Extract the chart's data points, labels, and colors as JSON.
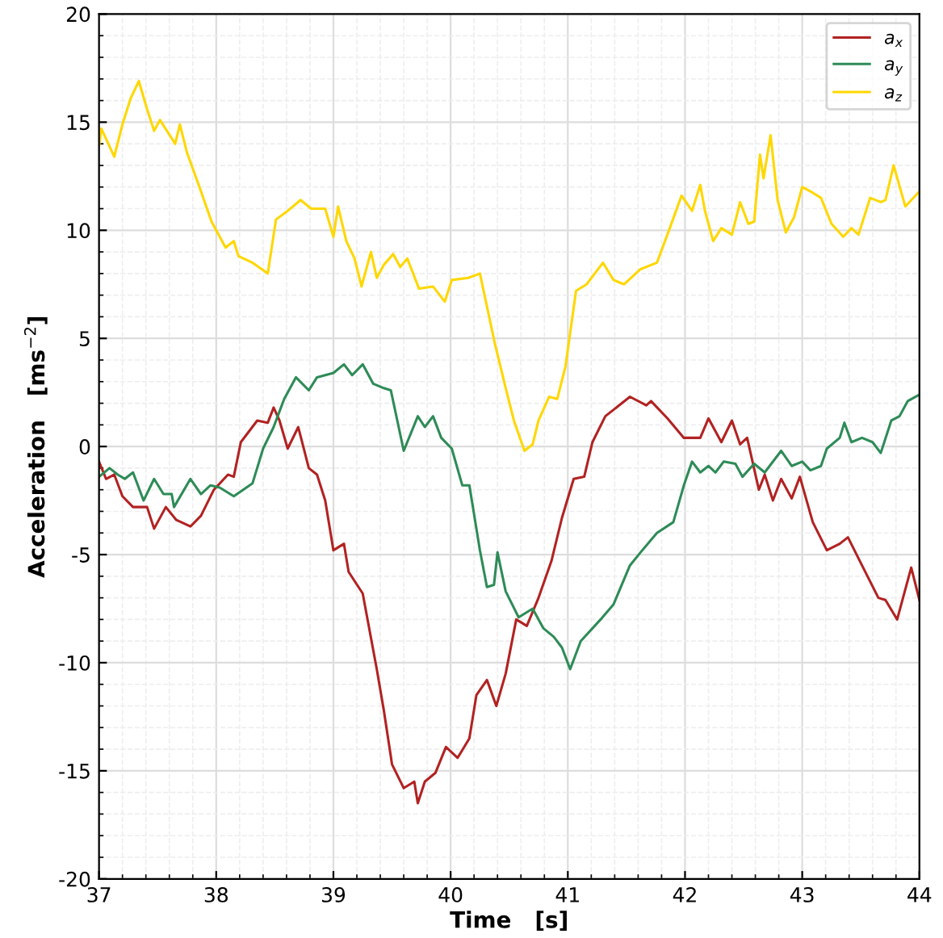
{
  "chart_data": {
    "type": "line",
    "xlabel": "Time   [s]",
    "ylabel": "Acceleration   [ms$^{−2}$]",
    "xlim": [
      37,
      44
    ],
    "ylim": [
      -20,
      20
    ],
    "xticks": [
      37,
      38,
      39,
      40,
      41,
      42,
      43,
      44
    ],
    "yticks": [
      -20,
      -15,
      -10,
      -5,
      0,
      5,
      10,
      15,
      20
    ],
    "grid": true,
    "legend": "top right",
    "line_style": "solid",
    "marker": "none",
    "series": [
      {
        "name": "a$_{x}$",
        "color": "#b22222",
        "x": [
          37.0,
          37.06,
          37.13,
          37.2,
          37.29,
          37.41,
          37.47,
          37.57,
          37.66,
          37.78,
          37.87,
          37.98,
          38.1,
          38.15,
          38.21,
          38.35,
          38.44,
          38.49,
          38.54,
          38.61,
          38.7,
          38.79,
          38.86,
          38.93,
          39.0,
          39.09,
          39.13,
          39.25,
          39.37,
          39.43,
          39.5,
          39.6,
          39.69,
          39.72,
          39.78,
          39.87,
          39.96,
          40.06,
          40.16,
          40.22,
          40.31,
          40.39,
          40.47,
          40.56,
          40.65,
          40.75,
          40.86,
          40.95,
          41.05,
          41.14,
          41.21,
          41.32,
          41.39,
          41.53,
          41.67,
          41.71,
          41.85,
          41.99,
          42.13,
          42.2,
          42.31,
          42.4,
          42.47,
          42.53,
          42.63,
          42.68,
          42.75,
          42.82,
          42.91,
          42.98,
          43.09,
          43.21,
          43.32,
          43.39,
          43.51,
          43.65,
          43.71,
          43.81,
          43.93,
          44.0
        ],
        "values": [
          -0.7,
          -1.5,
          -1.3,
          -2.3,
          -2.8,
          -2.8,
          -3.8,
          -2.8,
          -3.4,
          -3.7,
          -3.2,
          -2.0,
          -1.3,
          -1.4,
          0.2,
          1.2,
          1.1,
          1.8,
          1.2,
          -0.1,
          0.9,
          -1.0,
          -1.3,
          -2.5,
          -4.8,
          -4.5,
          -5.8,
          -6.8,
          -10.3,
          -12.2,
          -14.7,
          -15.8,
          -15.5,
          -16.5,
          -15.5,
          -15.1,
          -13.9,
          -14.4,
          -13.5,
          -11.5,
          -10.8,
          -12.0,
          -10.5,
          -8.0,
          -8.3,
          -7.0,
          -5.3,
          -3.3,
          -1.5,
          -1.4,
          0.2,
          1.4,
          1.7,
          2.3,
          1.9,
          2.1,
          1.3,
          0.4,
          0.4,
          1.3,
          0.2,
          1.2,
          0.1,
          0.4,
          -2.0,
          -1.3,
          -2.5,
          -1.5,
          -2.4,
          -1.4,
          -3.5,
          -4.8,
          -4.5,
          -4.2,
          -5.5,
          -7.0,
          -7.1,
          -8.0,
          -5.6,
          -7.1
        ]
      },
      {
        "name": "a$_{y}$",
        "color": "#2e8b57",
        "x": [
          37.0,
          37.09,
          37.16,
          37.22,
          37.29,
          37.38,
          37.47,
          37.55,
          37.62,
          37.64,
          37.78,
          37.87,
          37.95,
          38.03,
          38.15,
          38.31,
          38.4,
          38.49,
          38.58,
          38.68,
          38.79,
          38.86,
          39.0,
          39.09,
          39.16,
          39.25,
          39.34,
          39.43,
          39.49,
          39.6,
          39.72,
          39.78,
          39.85,
          39.92,
          40.01,
          40.1,
          40.16,
          40.25,
          40.31,
          40.37,
          40.4,
          40.47,
          40.58,
          40.7,
          40.79,
          40.88,
          40.95,
          41.02,
          41.11,
          41.28,
          41.39,
          41.53,
          41.62,
          41.76,
          41.9,
          41.99,
          42.06,
          42.13,
          42.2,
          42.26,
          42.33,
          42.43,
          42.49,
          42.59,
          42.68,
          42.82,
          42.91,
          43.0,
          43.07,
          43.16,
          43.21,
          43.32,
          43.36,
          43.42,
          43.51,
          43.6,
          43.67,
          43.76,
          43.83,
          43.9,
          44.0
        ],
        "values": [
          -1.4,
          -1.0,
          -1.3,
          -1.5,
          -1.2,
          -2.5,
          -1.5,
          -2.2,
          -2.2,
          -2.8,
          -1.5,
          -2.2,
          -1.8,
          -1.9,
          -2.3,
          -1.7,
          -0.1,
          0.9,
          2.2,
          3.2,
          2.6,
          3.2,
          3.4,
          3.8,
          3.3,
          3.8,
          2.9,
          2.7,
          2.6,
          -0.2,
          1.4,
          0.9,
          1.4,
          0.4,
          -0.1,
          -1.8,
          -1.8,
          -4.8,
          -6.5,
          -6.4,
          -4.9,
          -6.7,
          -7.9,
          -7.5,
          -8.4,
          -8.8,
          -9.3,
          -10.3,
          -9.0,
          -8.0,
          -7.3,
          -5.5,
          -4.9,
          -4.0,
          -3.5,
          -1.8,
          -0.7,
          -1.2,
          -0.9,
          -1.2,
          -0.7,
          -0.8,
          -1.4,
          -0.8,
          -1.2,
          -0.2,
          -0.9,
          -0.7,
          -1.1,
          -0.9,
          -0.1,
          0.4,
          1.1,
          0.2,
          0.4,
          0.2,
          -0.3,
          1.2,
          1.4,
          2.1,
          2.4
        ]
      },
      {
        "name": "a$_{z}$",
        "color": "#ffd700",
        "x": [
          37.0,
          37.02,
          37.13,
          37.2,
          37.27,
          37.34,
          37.41,
          37.47,
          37.52,
          37.65,
          37.69,
          37.75,
          37.87,
          37.96,
          38.08,
          38.15,
          38.19,
          38.31,
          38.44,
          38.51,
          38.61,
          38.72,
          38.81,
          38.93,
          39.0,
          39.04,
          39.11,
          39.18,
          39.24,
          39.32,
          39.37,
          39.43,
          39.51,
          39.57,
          39.63,
          39.73,
          39.85,
          39.95,
          40.01,
          40.15,
          40.25,
          40.38,
          40.47,
          40.54,
          40.63,
          40.7,
          40.75,
          40.84,
          40.91,
          40.98,
          41.07,
          41.16,
          41.3,
          41.39,
          41.48,
          41.62,
          41.76,
          41.87,
          41.97,
          42.06,
          42.13,
          42.17,
          42.24,
          42.31,
          42.4,
          42.47,
          42.54,
          42.59,
          42.64,
          42.67,
          42.73,
          42.79,
          42.86,
          42.93,
          43.0,
          43.07,
          43.16,
          43.25,
          43.35,
          43.42,
          43.48,
          43.58,
          43.67,
          43.71,
          43.78,
          43.88,
          44.0
        ],
        "values": [
          13.9,
          14.7,
          13.4,
          14.9,
          16.1,
          16.9,
          15.6,
          14.6,
          15.1,
          14.0,
          14.9,
          13.6,
          11.8,
          10.4,
          9.2,
          9.5,
          8.8,
          8.5,
          8.0,
          10.5,
          10.9,
          11.4,
          11.0,
          11.0,
          9.7,
          11.1,
          9.5,
          8.7,
          7.4,
          9.0,
          7.8,
          8.4,
          8.9,
          8.3,
          8.7,
          7.3,
          7.4,
          6.7,
          7.7,
          7.8,
          8.0,
          4.7,
          2.7,
          1.2,
          -0.2,
          0.1,
          1.2,
          2.3,
          2.2,
          3.7,
          7.2,
          7.5,
          8.5,
          7.7,
          7.5,
          8.2,
          8.5,
          10.1,
          11.6,
          10.9,
          12.1,
          10.9,
          9.5,
          10.1,
          9.8,
          11.3,
          10.3,
          10.4,
          13.5,
          12.4,
          14.4,
          11.4,
          9.9,
          10.6,
          12.0,
          11.8,
          11.5,
          10.3,
          9.7,
          10.1,
          9.8,
          11.5,
          11.3,
          11.4,
          13.0,
          11.1,
          11.8
        ]
      }
    ]
  }
}
